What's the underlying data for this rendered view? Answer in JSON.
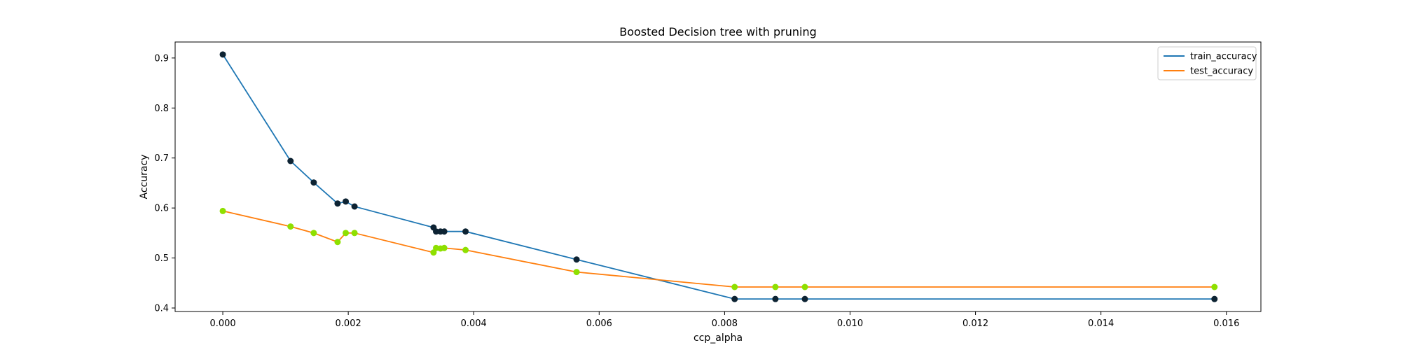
{
  "chart_data": {
    "type": "line",
    "title": "Boosted Decision tree with pruning",
    "xlabel": "ccp_alpha",
    "ylabel": "Accuracy",
    "xlim": [
      -0.00076,
      0.01655
    ],
    "ylim": [
      0.393,
      0.932
    ],
    "x_ticks": [
      0.0,
      0.002,
      0.004,
      0.006,
      0.008,
      0.01,
      0.012,
      0.014,
      0.016
    ],
    "x_tick_labels": [
      "0.000",
      "0.002",
      "0.004",
      "0.006",
      "0.008",
      "0.010",
      "0.012",
      "0.014",
      "0.016"
    ],
    "y_ticks": [
      0.4,
      0.5,
      0.6,
      0.7,
      0.8,
      0.9
    ],
    "y_tick_labels": [
      "0.4",
      "0.5",
      "0.6",
      "0.7",
      "0.8",
      "0.9"
    ],
    "grid": false,
    "legend_position": "top-right",
    "x": [
      0.0,
      0.00108,
      0.00145,
      0.00183,
      0.00196,
      0.0021,
      0.00336,
      0.0034,
      0.00347,
      0.00353,
      0.00387,
      0.00564,
      0.00816,
      0.00881,
      0.00928,
      0.01581
    ],
    "series": [
      {
        "name": "train_accuracy",
        "color": "#1f77b4",
        "marker_color": "#0d2333",
        "values": [
          0.907,
          0.694,
          0.651,
          0.609,
          0.613,
          0.603,
          0.561,
          0.553,
          0.553,
          0.553,
          0.553,
          0.497,
          0.418,
          0.418,
          0.418,
          0.418
        ]
      },
      {
        "name": "test_accuracy",
        "color": "#ff7f0e",
        "marker_color": "#8ee000",
        "values": [
          0.594,
          0.563,
          0.55,
          0.532,
          0.55,
          0.55,
          0.511,
          0.52,
          0.519,
          0.52,
          0.516,
          0.472,
          0.442,
          0.442,
          0.442,
          0.442
        ]
      }
    ]
  }
}
